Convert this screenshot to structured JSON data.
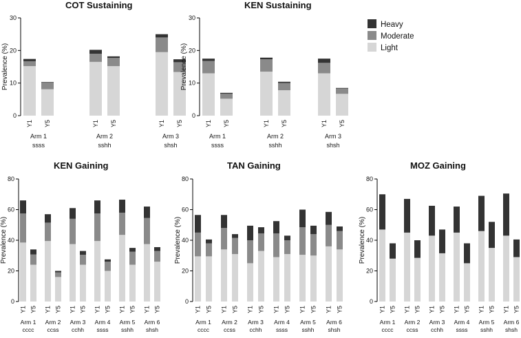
{
  "legend": [
    {
      "label": "Heavy",
      "color": "#333333"
    },
    {
      "label": "Moderate",
      "color": "#8a8a8a"
    },
    {
      "label": "Light",
      "color": "#d6d6d6"
    }
  ],
  "chart_data": [
    {
      "type": "bar",
      "stacked": true,
      "title": "COT Sustaining",
      "ylabel": "Prevalence (%)",
      "ylim": [
        0,
        30
      ],
      "yticks": [
        0,
        10,
        20,
        30
      ],
      "year_labels": [
        "Y1",
        "Y5"
      ],
      "groups": [
        {
          "arm": "Arm 1",
          "code": "ssss",
          "bars": [
            {
              "year": "Y1",
              "light": 15.2,
              "moderate": 1.5,
              "heavy": 0.7
            },
            {
              "year": "Y5",
              "light": 8.1,
              "moderate": 2.0,
              "heavy": 0.2
            }
          ]
        },
        {
          "arm": "Arm 2",
          "code": "sshh",
          "bars": [
            {
              "year": "Y1",
              "light": 16.5,
              "moderate": 2.5,
              "heavy": 1.2
            },
            {
              "year": "Y5",
              "light": 15.2,
              "moderate": 2.5,
              "heavy": 0.5
            }
          ]
        },
        {
          "arm": "Arm 3",
          "code": "shsh",
          "bars": [
            {
              "year": "Y1",
              "light": 19.5,
              "moderate": 4.5,
              "heavy": 1.0
            },
            {
              "year": "Y5",
              "light": 13.4,
              "moderate": 3.0,
              "heavy": 0.9
            }
          ]
        }
      ]
    },
    {
      "type": "bar",
      "stacked": true,
      "title": "KEN Sustaining",
      "ylabel": "Prevalence (%)",
      "ylim": [
        0,
        30
      ],
      "yticks": [
        0,
        10,
        20,
        30
      ],
      "year_labels": [
        "Y1",
        "Y5"
      ],
      "groups": [
        {
          "arm": "Arm 1",
          "code": "ssss",
          "bars": [
            {
              "year": "Y1",
              "light": 13.0,
              "moderate": 3.8,
              "heavy": 0.7
            },
            {
              "year": "Y5",
              "light": 5.2,
              "moderate": 1.5,
              "heavy": 0.3
            }
          ]
        },
        {
          "arm": "Arm 2",
          "code": "sshh",
          "bars": [
            {
              "year": "Y1",
              "light": 13.5,
              "moderate": 3.8,
              "heavy": 0.5
            },
            {
              "year": "Y5",
              "light": 7.8,
              "moderate": 2.2,
              "heavy": 0.4
            }
          ]
        },
        {
          "arm": "Arm 3",
          "code": "shsh",
          "bars": [
            {
              "year": "Y1",
              "light": 13.0,
              "moderate": 3.2,
              "heavy": 1.3
            },
            {
              "year": "Y5",
              "light": 6.7,
              "moderate": 1.6,
              "heavy": 0.2
            }
          ]
        }
      ]
    },
    {
      "type": "bar",
      "stacked": true,
      "title": "KEN Gaining",
      "ylabel": "Prevalence (%)",
      "ylim": [
        0,
        80
      ],
      "yticks": [
        0,
        20,
        40,
        60,
        80
      ],
      "year_labels": [
        "Y1",
        "Y5"
      ],
      "groups": [
        {
          "arm": "Arm 1",
          "code": "cccc",
          "bars": [
            {
              "year": "Y1",
              "light": 38.5,
              "moderate": 19.0,
              "heavy": 8.5
            },
            {
              "year": "Y5",
              "light": 24.0,
              "moderate": 6.7,
              "heavy": 3.3
            }
          ]
        },
        {
          "arm": "Arm 2",
          "code": "ccss",
          "bars": [
            {
              "year": "Y1",
              "light": 39.5,
              "moderate": 12.0,
              "heavy": 5.5
            },
            {
              "year": "Y5",
              "light": 16.0,
              "moderate": 3.0,
              "heavy": 1.0
            }
          ]
        },
        {
          "arm": "Arm 3",
          "code": "cchh",
          "bars": [
            {
              "year": "Y1",
              "light": 37.5,
              "moderate": 16.5,
              "heavy": 7.0
            },
            {
              "year": "Y5",
              "light": 24.0,
              "moderate": 6.5,
              "heavy": 2.5
            }
          ]
        },
        {
          "arm": "Arm 4",
          "code": "ssss",
          "bars": [
            {
              "year": "Y1",
              "light": 39.5,
              "moderate": 18.0,
              "heavy": 8.5
            },
            {
              "year": "Y5",
              "light": 20.0,
              "moderate": 6.0,
              "heavy": 1.5
            }
          ]
        },
        {
          "arm": "Arm 5",
          "code": "sshh",
          "bars": [
            {
              "year": "Y1",
              "light": 43.5,
              "moderate": 14.5,
              "heavy": 8.5
            },
            {
              "year": "Y5",
              "light": 24.0,
              "moderate": 8.5,
              "heavy": 2.5
            }
          ]
        },
        {
          "arm": "Arm 6",
          "code": "shsh",
          "bars": [
            {
              "year": "Y1",
              "light": 37.5,
              "moderate": 17.0,
              "heavy": 7.5
            },
            {
              "year": "Y5",
              "light": 26.0,
              "moderate": 7.0,
              "heavy": 2.5
            }
          ]
        }
      ]
    },
    {
      "type": "bar",
      "stacked": true,
      "title": "TAN Gaining",
      "ylabel": "Prevalence (%)",
      "ylim": [
        0,
        80
      ],
      "yticks": [
        0,
        20,
        40,
        60,
        80
      ],
      "year_labels": [
        "Y1",
        "Y5"
      ],
      "groups": [
        {
          "arm": "Arm 1",
          "code": "cccc",
          "bars": [
            {
              "year": "Y1",
              "light": 29.5,
              "moderate": 15.5,
              "heavy": 11.5
            },
            {
              "year": "Y5",
              "light": 29.5,
              "moderate": 8.5,
              "heavy": 2.5
            }
          ]
        },
        {
          "arm": "Arm 2",
          "code": "ccss",
          "bars": [
            {
              "year": "Y1",
              "light": 34.0,
              "moderate": 14.0,
              "heavy": 8.5
            },
            {
              "year": "Y5",
              "light": 31.0,
              "moderate": 10.5,
              "heavy": 2.5
            }
          ]
        },
        {
          "arm": "Arm 3",
          "code": "cchh",
          "bars": [
            {
              "year": "Y1",
              "light": 25.0,
              "moderate": 15.0,
              "heavy": 9.5
            },
            {
              "year": "Y5",
              "light": 33.0,
              "moderate": 11.5,
              "heavy": 4.0
            }
          ]
        },
        {
          "arm": "Arm 4",
          "code": "ssss",
          "bars": [
            {
              "year": "Y1",
              "light": 29.0,
              "moderate": 15.5,
              "heavy": 8.0
            },
            {
              "year": "Y5",
              "light": 31.0,
              "moderate": 9.0,
              "heavy": 3.0
            }
          ]
        },
        {
          "arm": "Arm 5",
          "code": "sshh",
          "bars": [
            {
              "year": "Y1",
              "light": 30.5,
              "moderate": 18.0,
              "heavy": 11.5
            },
            {
              "year": "Y5",
              "light": 30.0,
              "moderate": 14.0,
              "heavy": 5.5
            }
          ]
        },
        {
          "arm": "Arm 6",
          "code": "shsh",
          "bars": [
            {
              "year": "Y1",
              "light": 36.0,
              "moderate": 14.0,
              "heavy": 8.5
            },
            {
              "year": "Y5",
              "light": 34.0,
              "moderate": 12.0,
              "heavy": 3.0
            }
          ]
        }
      ]
    },
    {
      "type": "bar",
      "stacked": true,
      "title": "MOZ Gaining",
      "ylabel": "Prevalence (%)",
      "ylim": [
        0,
        80
      ],
      "yticks": [
        0,
        20,
        40,
        60,
        80
      ],
      "year_labels": [
        "Y1",
        "Y5"
      ],
      "groups": [
        {
          "arm": "Arm 1",
          "code": "cccc",
          "bars": [
            {
              "year": "Y1",
              "light": 47.0,
              "moderate": 0,
              "heavy": 23.0
            },
            {
              "year": "Y5",
              "light": 28.0,
              "moderate": 0,
              "heavy": 10.0
            }
          ]
        },
        {
          "arm": "Arm 2",
          "code": "ccss",
          "bars": [
            {
              "year": "Y1",
              "light": 45.0,
              "moderate": 0,
              "heavy": 22.0
            },
            {
              "year": "Y5",
              "light": 28.5,
              "moderate": 0,
              "heavy": 11.5
            }
          ]
        },
        {
          "arm": "Arm 3",
          "code": "cchh",
          "bars": [
            {
              "year": "Y1",
              "light": 43.0,
              "moderate": 0,
              "heavy": 19.5
            },
            {
              "year": "Y5",
              "light": 31.5,
              "moderate": 0,
              "heavy": 15.5
            }
          ]
        },
        {
          "arm": "Arm 4",
          "code": "ssss",
          "bars": [
            {
              "year": "Y1",
              "light": 45.0,
              "moderate": 0,
              "heavy": 17.0
            },
            {
              "year": "Y5",
              "light": 25.0,
              "moderate": 0,
              "heavy": 13.0
            }
          ]
        },
        {
          "arm": "Arm 5",
          "code": "sshh",
          "bars": [
            {
              "year": "Y1",
              "light": 46.0,
              "moderate": 0,
              "heavy": 23.0
            },
            {
              "year": "Y5",
              "light": 35.0,
              "moderate": 0,
              "heavy": 17.0
            }
          ]
        },
        {
          "arm": "Arm 6",
          "code": "shsh",
          "bars": [
            {
              "year": "Y1",
              "light": 43.0,
              "moderate": 0,
              "heavy": 27.5
            },
            {
              "year": "Y5",
              "light": 29.0,
              "moderate": 0,
              "heavy": 11.5
            }
          ]
        }
      ]
    }
  ]
}
